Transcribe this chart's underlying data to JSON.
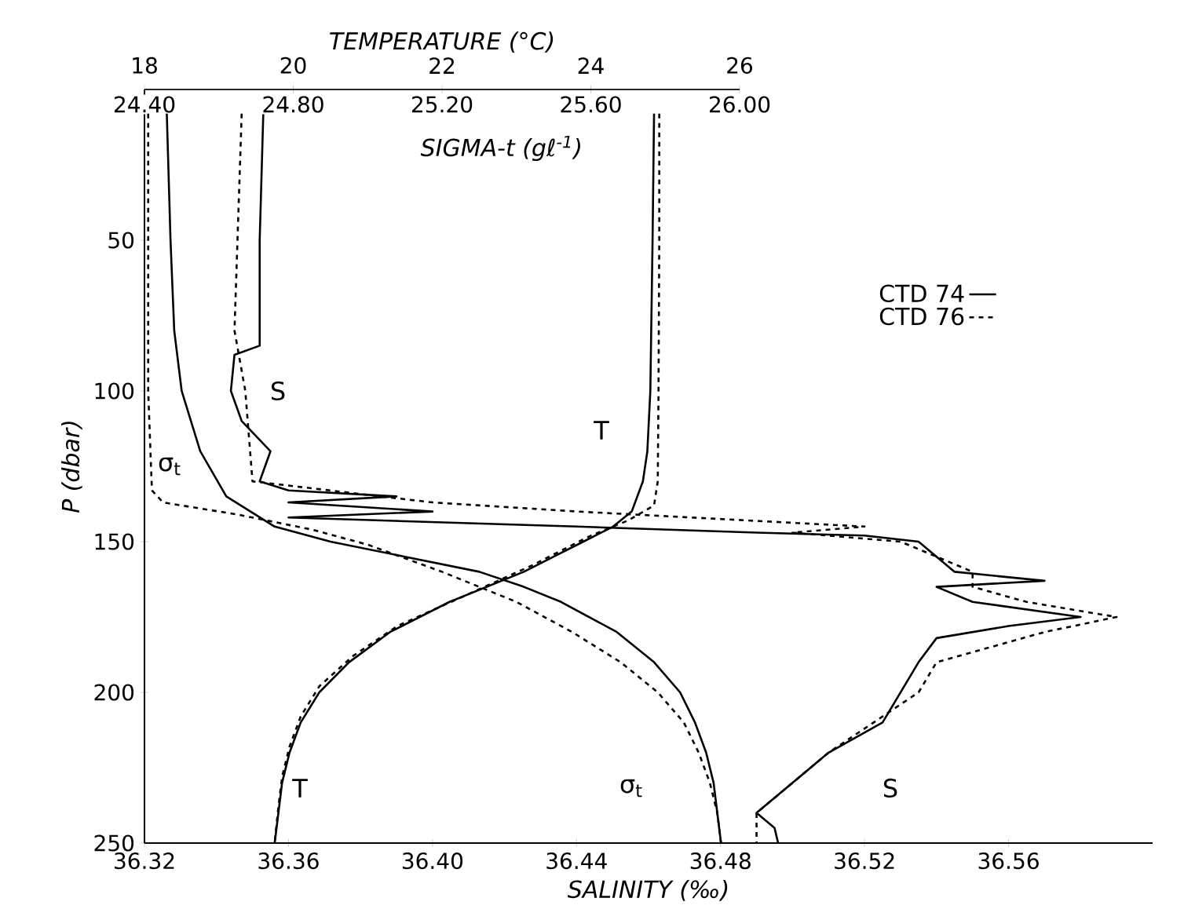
{
  "chart_data": [
    {
      "type": "line",
      "xlabel": "SALINITY (‰)",
      "x2label": "TEMPERATURE (°C)",
      "ylabel": "P (dbar)",
      "xlim": [
        36.32,
        36.6
      ],
      "xticks": [
        {
          "value": 36.32,
          "label": "36.32"
        },
        {
          "value": 36.36,
          "label": "36.36"
        },
        {
          "value": 36.4,
          "label": "36.40"
        },
        {
          "value": 36.44,
          "label": "36.44"
        },
        {
          "value": 36.48,
          "label": "36.48"
        },
        {
          "value": 36.52,
          "label": "36.52"
        },
        {
          "value": 36.56,
          "label": "36.56"
        }
      ],
      "x2lim": [
        18,
        26
      ],
      "x2ticks": [
        18,
        20,
        22,
        24,
        26
      ],
      "ylim": [
        250,
        0
      ],
      "yticks": [
        50,
        100,
        150,
        200,
        250
      ],
      "legend": "right",
      "series": [
        {
          "name": "CTD 74",
          "color": "#000000",
          "line_style": "solid",
          "axis": "x2",
          "x": [
            24.85,
            24.83,
            24.8,
            24.76,
            24.7,
            24.55,
            24.3,
            23.9,
            23.5,
            23.1,
            22.6,
            22.1,
            21.3,
            20.75,
            20.35,
            20.1,
            19.95,
            19.85,
            19.8,
            19.75
          ],
          "values": [
            8,
            50,
            100,
            120,
            130,
            140,
            145,
            150,
            155,
            160,
            165,
            170,
            180,
            190,
            200,
            210,
            220,
            230,
            240,
            250
          ]
        },
        {
          "name": "CTD 76",
          "color": "#000000",
          "line_style": "dashed",
          "axis": "x2",
          "x": [
            24.92,
            24.92,
            24.91,
            24.9,
            24.85,
            24.5,
            24.0,
            23.2,
            22.3,
            21.4,
            20.8,
            20.35,
            20.1,
            19.95,
            19.85,
            19.8,
            19.75
          ],
          "values": [
            8,
            50,
            100,
            130,
            138,
            143,
            148,
            158,
            168,
            178,
            188,
            198,
            208,
            218,
            228,
            238,
            250
          ]
        },
        {
          "color": "#000000",
          "line_style": "solid",
          "x": [
            36.353,
            36.352,
            36.352,
            36.345,
            36.344,
            36.347,
            36.355,
            36.352,
            36.36,
            36.39,
            36.36,
            36.4,
            36.36,
            36.44,
            36.49,
            36.52,
            36.535,
            36.54,
            36.545,
            36.57,
            36.54,
            36.55,
            36.58,
            36.56,
            36.54,
            36.535,
            36.53,
            36.525,
            36.51,
            36.5,
            36.49,
            36.495,
            36.496
          ],
          "values": [
            8,
            50,
            85,
            88,
            100,
            110,
            120,
            130,
            133,
            135,
            137,
            140,
            142,
            145,
            147,
            148,
            150,
            155,
            160,
            163,
            165,
            170,
            175,
            178,
            182,
            190,
            200,
            210,
            220,
            230,
            240,
            245,
            250
          ]
        },
        {
          "color": "#000000",
          "line_style": "dashed",
          "x": [
            36.347,
            36.345,
            36.348,
            36.35,
            36.4,
            36.44,
            36.52,
            36.5,
            36.53,
            36.54,
            36.55,
            36.55,
            36.565,
            36.59,
            36.57,
            36.54,
            36.535,
            36.51,
            36.495,
            36.49,
            36.49
          ],
          "values": [
            8,
            80,
            100,
            130,
            137,
            140,
            145,
            147,
            150,
            155,
            160,
            165,
            170,
            175,
            180,
            190,
            200,
            220,
            235,
            240,
            250
          ]
        }
      ],
      "annotations": [
        "S",
        "T",
        "T",
        "S"
      ]
    },
    {
      "type": "line",
      "xlabel": "SIGMA-t (gℓ$^{-1}$)",
      "xlim": [
        24.4,
        26.0
      ],
      "xticks": [
        {
          "value": 24.4,
          "label": "24.40"
        },
        {
          "value": 24.8,
          "label": "24.80"
        },
        {
          "value": 25.2,
          "label": "25.20"
        },
        {
          "value": 25.6,
          "label": "25.60"
        },
        {
          "value": 26.0,
          "label": "26.00"
        }
      ],
      "ylim": [
        250,
        0
      ],
      "tick_labels": "x",
      "series": [
        {
          "color": "#000000",
          "line_style": "solid",
          "x": [
            24.46,
            24.47,
            24.48,
            24.5,
            24.55,
            24.62,
            24.75,
            24.9,
            25.1,
            25.3,
            25.42,
            25.52,
            25.67,
            25.77,
            25.84,
            25.88,
            25.91,
            25.93,
            25.94,
            25.95
          ],
          "values": [
            8,
            50,
            80,
            100,
            120,
            135,
            145,
            150,
            155,
            160,
            165,
            170,
            180,
            190,
            200,
            210,
            220,
            230,
            240,
            250
          ]
        },
        {
          "color": "#000000",
          "line_style": "dashed",
          "x": [
            24.41,
            24.41,
            24.42,
            24.45,
            24.65,
            24.85,
            25.0,
            25.2,
            25.4,
            25.55,
            25.68,
            25.78,
            25.85,
            25.89,
            25.92,
            25.94,
            25.95
          ],
          "values": [
            8,
            100,
            133,
            137,
            141,
            146,
            151,
            160,
            170,
            180,
            190,
            200,
            210,
            220,
            230,
            240,
            250
          ]
        }
      ],
      "annotations": [
        "σ$_{t}$",
        "σ$_{t}$"
      ]
    }
  ]
}
